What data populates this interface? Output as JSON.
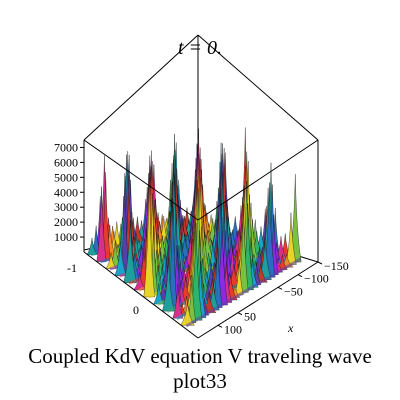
{
  "chart_data": {
    "type": "surface3d",
    "title": "t = 0.",
    "caption_line1": "Coupled KdV equation V traveling wave",
    "caption_line2": "plot33",
    "xlabel": "x",
    "ylabel": "",
    "zlabel": "",
    "x_ticks": [
      "-150",
      "-100",
      "-50",
      "50",
      "100"
    ],
    "y_ticks": [
      "-1",
      "0"
    ],
    "z_ticks": [
      "1000",
      "2000",
      "3000",
      "4000",
      "5000",
      "6000",
      "7000"
    ],
    "xlim": [
      -150,
      150
    ],
    "ylim": [
      -1,
      1
    ],
    "zlim": [
      0,
      7500
    ],
    "grid": false,
    "legend": "none"
  }
}
